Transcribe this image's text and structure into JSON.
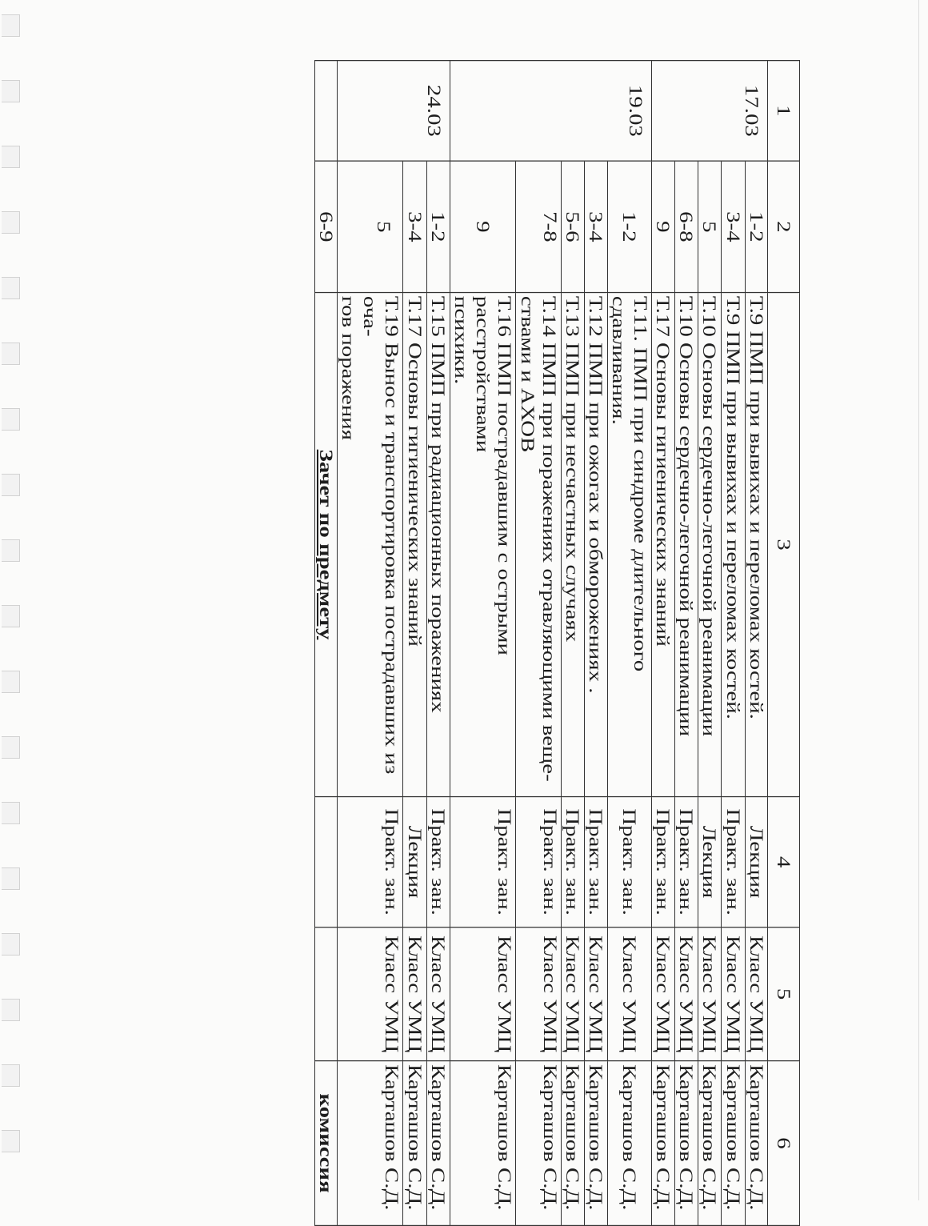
{
  "header": [
    "1",
    "2",
    "3",
    "4",
    "5",
    "6"
  ],
  "days": [
    {
      "date": "17.03",
      "rows": [
        {
          "pair": "1-2",
          "topic": "Т.9 ПМП при вывихах и переломах костей.",
          "type": "Лекция",
          "place": "Класс УМЦ",
          "teacher": "Карташов С.Д."
        },
        {
          "pair": "3-4",
          "topic": "Т.9 ПМП при вывихах и переломах костей.",
          "type": "Практ. зан.",
          "place": "Класс УМЦ",
          "teacher": "Карташов С.Д."
        },
        {
          "pair": "5",
          "topic": "Т.10 Основы сердечно-легочной реанимации",
          "type": "Лекция",
          "place": "Класс УМЦ",
          "teacher": "Карташов С.Д."
        },
        {
          "pair": "6-8",
          "topic": "Т.10 Основы сердечно-легочной реанимации",
          "type": "Практ. зан.",
          "place": "Класс УМЦ",
          "teacher": "Карташов С.Д."
        },
        {
          "pair": "9",
          "topic": "Т.17 Основы гигиенических знаний",
          "type": "Практ. зан.",
          "place": "Класс УМЦ",
          "teacher": "Карташов С.Д."
        }
      ]
    },
    {
      "date": "19.03",
      "rows": [
        {
          "pair": "1-2",
          "topic": "Т.11. ПМП при синдроме длительного сдавливания.",
          "type": "Практ. зан.",
          "place": "Класс УМЦ",
          "teacher": "Карташов С.Д."
        },
        {
          "pair": "3-4",
          "topic": "Т.12 ПМП при ожогах и обморожениях .",
          "type": "Практ. зан.",
          "place": "Класс УМЦ",
          "teacher": "Карташов С.Д."
        },
        {
          "pair": "5-6",
          "topic": "Т.13 ПМП при несчастных случаях",
          "type": "Практ. зан.",
          "place": "Класс УМЦ",
          "teacher": "Карташов С.Д."
        },
        {
          "pair": "7-8",
          "topic": "Т.14 ПМП при поражениях отравляющими веще-\nствами и АХОВ",
          "type": "Практ. зан.",
          "place": "Класс УМЦ",
          "teacher": "Карташов С.Д."
        },
        {
          "pair": "9",
          "topic": "Т.16 ПМП пострадавшим с острыми расстройствами\nпсихики.",
          "type": "Практ. зан.",
          "place": "Класс УМЦ",
          "teacher": "Карташов С.Д."
        }
      ]
    },
    {
      "date": "24.03",
      "rows": [
        {
          "pair": "1-2",
          "topic": "Т.15 ПМП при радиационных поражениях",
          "type": "Практ. зан.",
          "place": "Класс УМЦ",
          "teacher": "Карташов С.Д."
        },
        {
          "pair": "3-4",
          "topic": "Т.17 Основы гигиенических знаний",
          "type": "Лекция",
          "place": "Класс УМЦ",
          "teacher": "Карташов С.Д."
        },
        {
          "pair": "5",
          "topic": "Т.19 Вынос и транспортировка пострадавших из оча-\nгов поражения",
          "type": "Практ. зан.",
          "place": "Класс УМЦ",
          "teacher": "Карташов С.Д."
        }
      ]
    }
  ],
  "final": {
    "pair": "6-9",
    "topic": "Зачет по предмету",
    "teacher": "комиссия"
  }
}
